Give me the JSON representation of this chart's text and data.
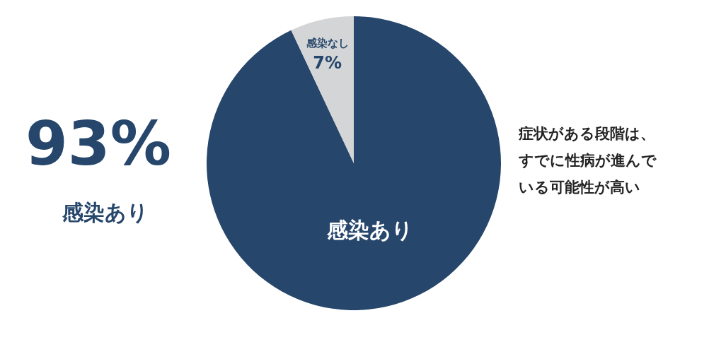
{
  "chart_data": {
    "type": "pie",
    "categories": [
      "感染あり",
      "感染なし"
    ],
    "values": [
      93,
      7
    ],
    "value_labels": [
      "93%",
      "7%"
    ],
    "colors": [
      "#26466b",
      "#d4d5d6"
    ],
    "annotations": [
      "症状がある段階は、すでに性病が進んでいる可能性が高い"
    ]
  }
}
